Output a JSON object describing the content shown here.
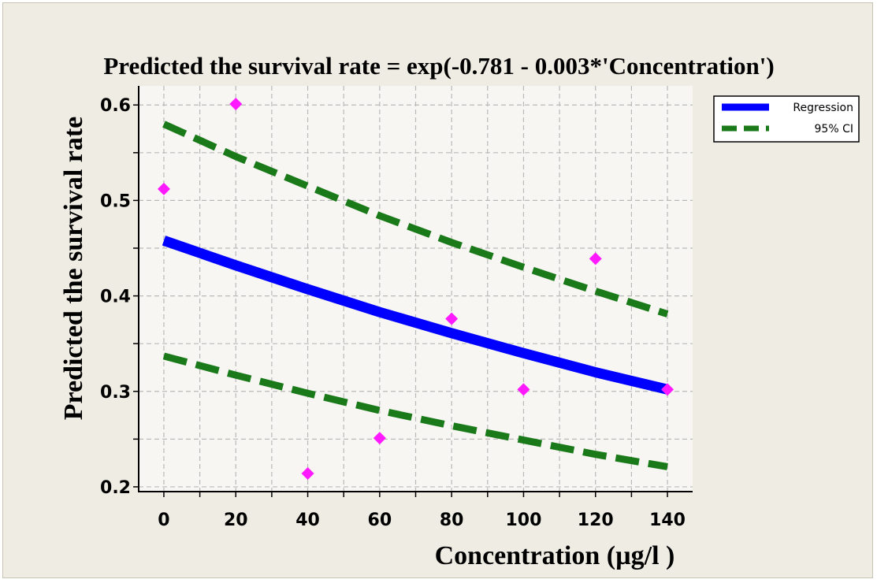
{
  "chart_data": {
    "type": "line",
    "title": "Predicted the survival rate = exp(-0.781 - 0.003*'Concentration')",
    "xlabel": "Concentration (µg/l )",
    "ylabel": "Predicted the survival rate",
    "xlim": [
      -7,
      147
    ],
    "ylim": [
      0.195,
      0.62
    ],
    "x_ticks": [
      0,
      20,
      40,
      60,
      80,
      100,
      120,
      140
    ],
    "x_tick_labels": [
      "0",
      "20",
      "40",
      "60",
      "80",
      "100",
      "120",
      "140"
    ],
    "y_ticks": [
      0.2,
      0.3,
      0.4,
      0.5,
      0.6
    ],
    "y_tick_labels": [
      "0.2",
      "0.3",
      "0.4",
      "0.5",
      "0.6"
    ],
    "grid": true,
    "legend_position": "top-right",
    "series": [
      {
        "name": "Regression",
        "kind": "line",
        "color": "#0000ff",
        "x": [
          0,
          20,
          40,
          60,
          80,
          100,
          120,
          140
        ],
        "y": [
          0.458,
          0.432,
          0.407,
          0.383,
          0.361,
          0.34,
          0.32,
          0.302
        ]
      },
      {
        "name": "95% CI",
        "kind": "line-dashed",
        "color": "#1a7a1a",
        "x": [
          0,
          20,
          40,
          60,
          80,
          100,
          120,
          140
        ],
        "y": [
          0.58,
          0.546,
          0.515,
          0.484,
          0.456,
          0.43,
          0.405,
          0.381
        ]
      },
      {
        "kind": "line-dashed",
        "color": "#1a7a1a",
        "x": [
          0,
          20,
          40,
          60,
          80,
          100,
          120,
          140
        ],
        "y": [
          0.337,
          0.317,
          0.298,
          0.28,
          0.264,
          0.249,
          0.234,
          0.221
        ]
      },
      {
        "kind": "scatter",
        "color": "#ff1aff",
        "x": [
          0,
          20,
          40,
          60,
          80,
          100,
          120,
          140
        ],
        "y": [
          0.512,
          0.601,
          0.214,
          0.251,
          0.376,
          0.302,
          0.439,
          0.302
        ]
      }
    ]
  }
}
